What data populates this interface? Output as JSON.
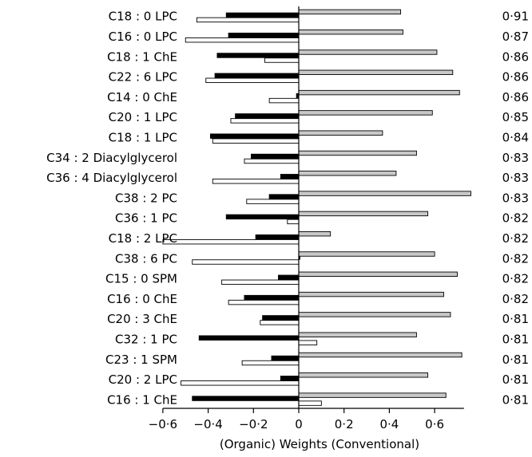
{
  "chart_data": {
    "type": "bar",
    "orientation": "horizontal",
    "xlabel": "(Organic) Weights (Conventional)",
    "xlim": [
      -0.6,
      0.8
    ],
    "xticks": [
      -0.6,
      -0.4,
      -0.2,
      0,
      0.2,
      0.4,
      0.6
    ],
    "xtick_labels": [
      "−0·6",
      "−0·4",
      "−0·2",
      "0",
      "0·2",
      "0·4",
      "0·6"
    ],
    "categories": [
      "C18 : 0 LPC",
      "C16 : 0 LPC",
      "C18 : 1 ChE",
      "C22 : 6 LPC",
      "C14 : 0 ChE",
      "C20 : 1 LPC",
      "C18 : 1 LPC",
      "C34 : 2 Diacylglycerol",
      "C36 : 4 Diacylglycerol",
      "C38 : 2 PC",
      "C36 : 1 PC",
      "C18 : 2 LPC",
      "C38 : 6 PC",
      "C15 : 0 SPM",
      "C16 : 0 ChE",
      "C20 : 3 ChE",
      "C32 : 1 PC",
      "C23 : 1 SPM",
      "C20 : 2 LPC",
      "C16 : 1 ChE"
    ],
    "correlations": [
      "0·91",
      "0·87",
      "0·86",
      "0·86",
      "0·86",
      "0·85",
      "0·84",
      "0·83",
      "0·83",
      "0·83",
      "0·82",
      "0·82",
      "0·82",
      "0·82",
      "0·82",
      "0·81",
      "0·81",
      "0·81",
      "0·81",
      "0·81"
    ],
    "series": [
      {
        "style": "black",
        "color": "#000000",
        "values": [
          -0.32,
          -0.31,
          -0.36,
          -0.37,
          -0.01,
          -0.28,
          -0.39,
          -0.21,
          -0.08,
          -0.13,
          -0.32,
          -0.19,
          0.005,
          -0.09,
          -0.24,
          -0.16,
          -0.44,
          -0.12,
          -0.08,
          -0.47
        ]
      },
      {
        "style": "white",
        "color": "#ffffff",
        "values": [
          -0.45,
          -0.5,
          -0.15,
          -0.41,
          -0.13,
          -0.3,
          -0.38,
          -0.24,
          -0.38,
          -0.23,
          -0.05,
          -0.6,
          -0.47,
          -0.34,
          -0.31,
          -0.17,
          0.08,
          -0.25,
          -0.52,
          0.1
        ]
      },
      {
        "style": "gray",
        "color": "#c8c8c8",
        "values": [
          0.45,
          0.46,
          0.61,
          0.68,
          0.71,
          0.59,
          0.37,
          0.52,
          0.43,
          0.76,
          0.57,
          0.14,
          0.6,
          0.7,
          0.64,
          0.67,
          0.52,
          0.72,
          0.57,
          0.65
        ]
      }
    ]
  }
}
